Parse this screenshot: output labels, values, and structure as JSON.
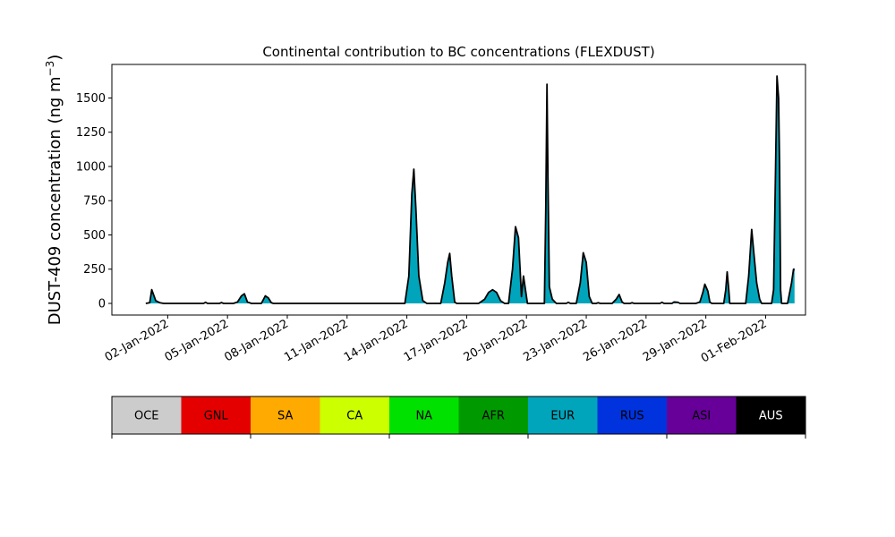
{
  "chart_data": {
    "type": "area",
    "title": "Continental contribution to BC concentrations (FLEXDUST)",
    "ylabel": "DUST-409 concentration (ng m",
    "ylabel_sup": "−3",
    "ylabel_close": ")",
    "xlabel": "",
    "ylim": [
      -85,
      1745
    ],
    "xlim_days": [
      -1.8,
      33.0
    ],
    "yticks": [
      0,
      250,
      500,
      750,
      1000,
      1250,
      1500
    ],
    "ytick_labels": [
      "0",
      "250",
      "500",
      "750",
      "1000",
      "1250",
      "1500"
    ],
    "xticks": [
      {
        "day": 1,
        "label": "02-Jan-2022"
      },
      {
        "day": 4,
        "label": "05-Jan-2022"
      },
      {
        "day": 7,
        "label": "08-Jan-2022"
      },
      {
        "day": 10,
        "label": "11-Jan-2022"
      },
      {
        "day": 13,
        "label": "14-Jan-2022"
      },
      {
        "day": 16,
        "label": "17-Jan-2022"
      },
      {
        "day": 19,
        "label": "20-Jan-2022"
      },
      {
        "day": 22,
        "label": "23-Jan-2022"
      },
      {
        "day": 25,
        "label": "26-Jan-2022"
      },
      {
        "day": 28,
        "label": "29-Jan-2022"
      },
      {
        "day": 31,
        "label": "01-Feb-2022"
      }
    ],
    "x_note": "x in days after 2022-01-01 00:00",
    "series_total": [
      [
        -0.1,
        0
      ],
      [
        0.1,
        5
      ],
      [
        0.2,
        100
      ],
      [
        0.3,
        60
      ],
      [
        0.4,
        20
      ],
      [
        0.6,
        5
      ],
      [
        0.8,
        0
      ],
      [
        2.8,
        0
      ],
      [
        2.9,
        8
      ],
      [
        3.0,
        0
      ],
      [
        3.6,
        0
      ],
      [
        3.7,
        6
      ],
      [
        3.8,
        0
      ],
      [
        4.3,
        0
      ],
      [
        4.5,
        10
      ],
      [
        4.7,
        55
      ],
      [
        4.85,
        70
      ],
      [
        5.0,
        10
      ],
      [
        5.2,
        0
      ],
      [
        5.7,
        0
      ],
      [
        5.9,
        55
      ],
      [
        6.05,
        40
      ],
      [
        6.2,
        5
      ],
      [
        6.3,
        0
      ],
      [
        12.9,
        0
      ],
      [
        13.1,
        200
      ],
      [
        13.25,
        800
      ],
      [
        13.35,
        980
      ],
      [
        13.45,
        700
      ],
      [
        13.6,
        200
      ],
      [
        13.8,
        20
      ],
      [
        14.0,
        0
      ],
      [
        14.7,
        0
      ],
      [
        14.9,
        150
      ],
      [
        15.05,
        300
      ],
      [
        15.15,
        365
      ],
      [
        15.25,
        200
      ],
      [
        15.4,
        10
      ],
      [
        15.5,
        0
      ],
      [
        16.6,
        0
      ],
      [
        16.9,
        30
      ],
      [
        17.1,
        80
      ],
      [
        17.3,
        100
      ],
      [
        17.5,
        80
      ],
      [
        17.7,
        20
      ],
      [
        17.9,
        0
      ],
      [
        18.1,
        0
      ],
      [
        18.3,
        250
      ],
      [
        18.45,
        560
      ],
      [
        18.6,
        480
      ],
      [
        18.75,
        50
      ],
      [
        18.85,
        200
      ],
      [
        18.95,
        100
      ],
      [
        19.05,
        0
      ],
      [
        19.9,
        0
      ],
      [
        19.97,
        700
      ],
      [
        20.03,
        1600
      ],
      [
        20.08,
        900
      ],
      [
        20.15,
        120
      ],
      [
        20.3,
        30
      ],
      [
        20.5,
        0
      ],
      [
        21.0,
        0
      ],
      [
        21.1,
        8
      ],
      [
        21.2,
        0
      ],
      [
        21.5,
        0
      ],
      [
        21.7,
        150
      ],
      [
        21.85,
        370
      ],
      [
        22.0,
        300
      ],
      [
        22.15,
        50
      ],
      [
        22.3,
        0
      ],
      [
        22.5,
        0
      ],
      [
        22.6,
        5
      ],
      [
        22.7,
        0
      ],
      [
        23.3,
        0
      ],
      [
        23.5,
        30
      ],
      [
        23.65,
        65
      ],
      [
        23.8,
        10
      ],
      [
        23.9,
        0
      ],
      [
        24.2,
        0
      ],
      [
        24.3,
        5
      ],
      [
        24.4,
        0
      ],
      [
        25.7,
        0
      ],
      [
        25.8,
        8
      ],
      [
        25.9,
        0
      ],
      [
        26.3,
        0
      ],
      [
        26.4,
        10
      ],
      [
        26.6,
        8
      ],
      [
        26.7,
        0
      ],
      [
        27.5,
        0
      ],
      [
        27.7,
        10
      ],
      [
        27.85,
        80
      ],
      [
        27.95,
        140
      ],
      [
        28.1,
        90
      ],
      [
        28.2,
        10
      ],
      [
        28.3,
        0
      ],
      [
        28.9,
        0
      ],
      [
        29.0,
        100
      ],
      [
        29.07,
        230
      ],
      [
        29.15,
        100
      ],
      [
        29.2,
        0
      ],
      [
        30.0,
        0
      ],
      [
        30.15,
        200
      ],
      [
        30.3,
        540
      ],
      [
        30.4,
        380
      ],
      [
        30.55,
        150
      ],
      [
        30.7,
        30
      ],
      [
        30.8,
        0
      ],
      [
        31.3,
        0
      ],
      [
        31.4,
        100
      ],
      [
        31.5,
        1000
      ],
      [
        31.57,
        1660
      ],
      [
        31.65,
        1500
      ],
      [
        31.7,
        1000
      ],
      [
        31.75,
        100
      ],
      [
        31.8,
        0
      ],
      [
        32.1,
        0
      ],
      [
        32.3,
        150
      ],
      [
        32.4,
        250
      ],
      [
        32.45,
        250
      ]
    ],
    "series_blue_fraction": 0.05,
    "legend": {
      "type": "colorbar",
      "entries": [
        {
          "label": "OCE",
          "color": "#cccccc",
          "text_color": "#000000"
        },
        {
          "label": "GNL",
          "color": "#e50000",
          "text_color": "#000000"
        },
        {
          "label": "SA",
          "color": "#ffaa00",
          "text_color": "#000000"
        },
        {
          "label": "CA",
          "color": "#ccff00",
          "text_color": "#000000"
        },
        {
          "label": "NA",
          "color": "#00e100",
          "text_color": "#000000"
        },
        {
          "label": "AFR",
          "color": "#009a00",
          "text_color": "#000000"
        },
        {
          "label": "EUR",
          "color": "#00a5bb",
          "text_color": "#000000"
        },
        {
          "label": "RUS",
          "color": "#0033dd",
          "text_color": "#000000"
        },
        {
          "label": "ASI",
          "color": "#660099",
          "text_color": "#000000"
        },
        {
          "label": "AUS",
          "color": "#000000",
          "text_color": "#ffffff"
        }
      ]
    },
    "colors": {
      "area_main": "#00a5bb",
      "area_secondary": "#0033dd",
      "outline": "#000000"
    }
  }
}
